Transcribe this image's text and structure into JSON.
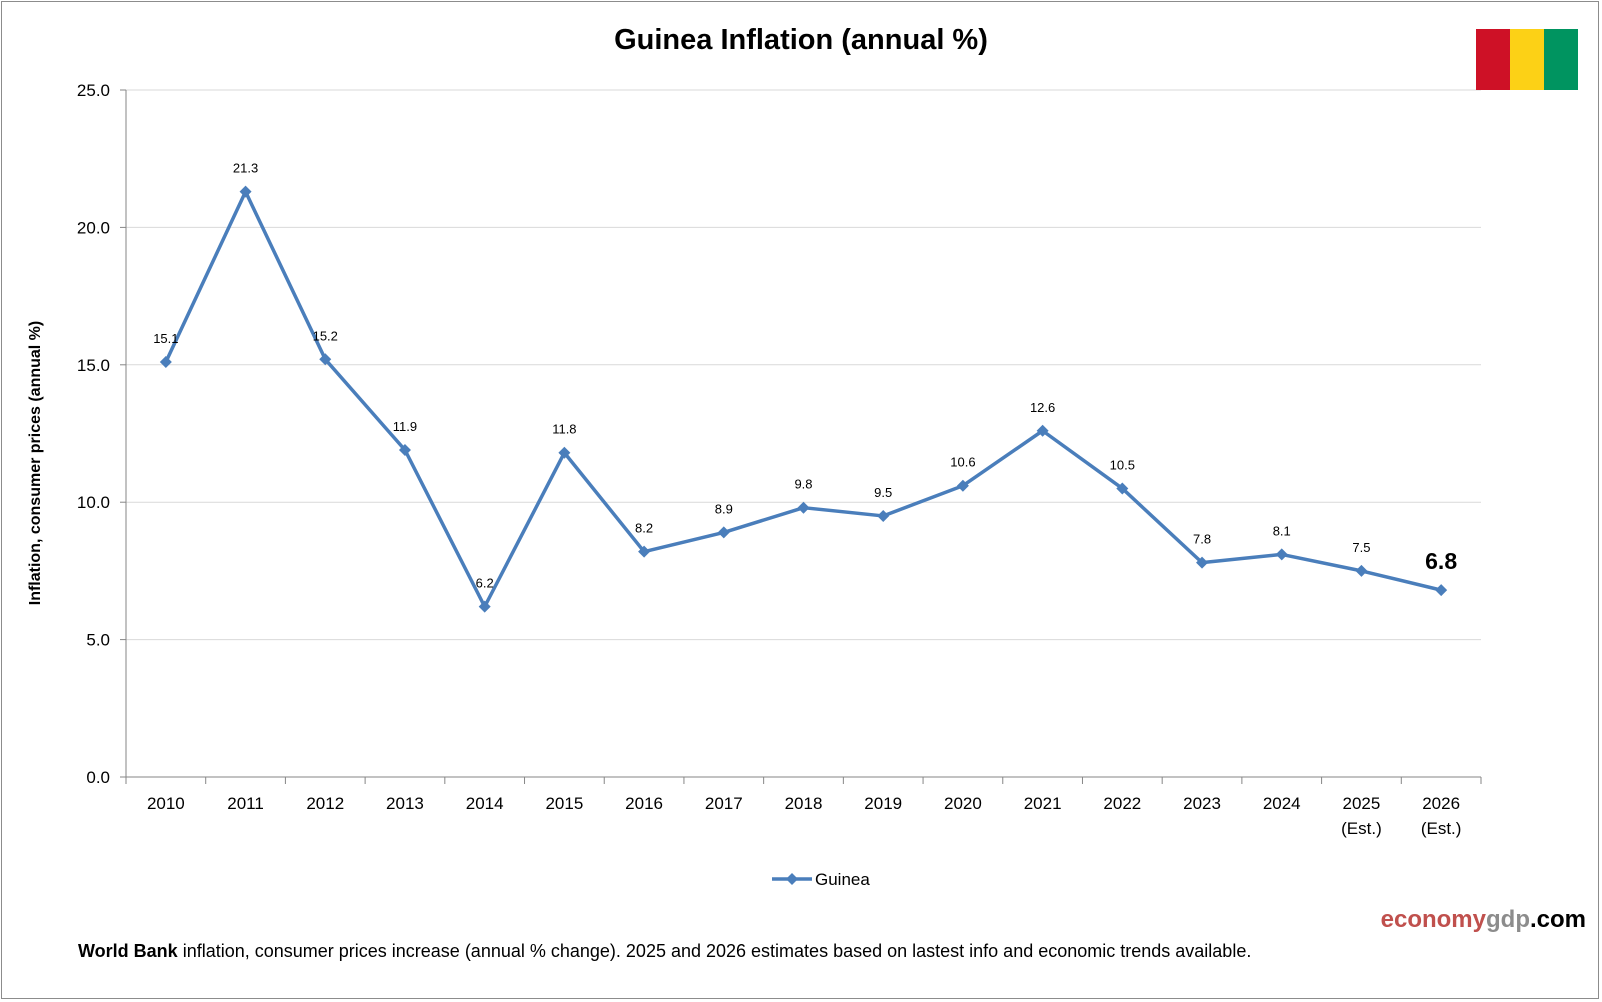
{
  "chart_data": {
    "type": "line",
    "title": "Guinea Inflation (annual %)",
    "xlabel": "",
    "ylabel": "Inflation, consumer prices (annual %)",
    "ylim": [
      0,
      25
    ],
    "yticks": [
      "0.0",
      "5.0",
      "10.0",
      "15.0",
      "20.0",
      "25.0"
    ],
    "categories": [
      [
        "2010"
      ],
      [
        "2011"
      ],
      [
        "2012"
      ],
      [
        "2013"
      ],
      [
        "2014"
      ],
      [
        "2015"
      ],
      [
        "2016"
      ],
      [
        "2017"
      ],
      [
        "2018"
      ],
      [
        "2019"
      ],
      [
        "2020"
      ],
      [
        "2021"
      ],
      [
        "2022"
      ],
      [
        "2023"
      ],
      [
        "2024"
      ],
      [
        "2025",
        "(Est.)"
      ],
      [
        "2026",
        "(Est.)"
      ]
    ],
    "series": [
      {
        "name": "Guinea",
        "color": "#4a7ebb",
        "values": [
          15.1,
          21.3,
          15.2,
          11.9,
          6.2,
          11.8,
          8.2,
          8.9,
          9.8,
          9.5,
          10.6,
          12.6,
          10.5,
          7.8,
          8.1,
          7.5,
          6.8
        ],
        "labels": [
          "15.1",
          "21.3",
          "15.2",
          "11.9",
          "6.2",
          "11.8",
          "8.2",
          "8.9",
          "9.8",
          "9.5",
          "10.6",
          "12.6",
          "10.5",
          "7.8",
          "8.1",
          "7.5",
          "6.8"
        ]
      }
    ],
    "grid": true,
    "legend_position": "bottom-center"
  },
  "flag_colors": [
    "#ce1126",
    "#fcd116",
    "#009460"
  ],
  "brand": {
    "part1": "economy",
    "part2": "gdp",
    "part3": ".com",
    "color1": "#c0504d",
    "color2": "#8c8c8c",
    "color3": "#000000"
  },
  "footer": {
    "bold": "World Bank",
    "text": " inflation, consumer prices increase (annual % change).  2025 and 2026 estimates based on lastest info and economic trends available."
  }
}
